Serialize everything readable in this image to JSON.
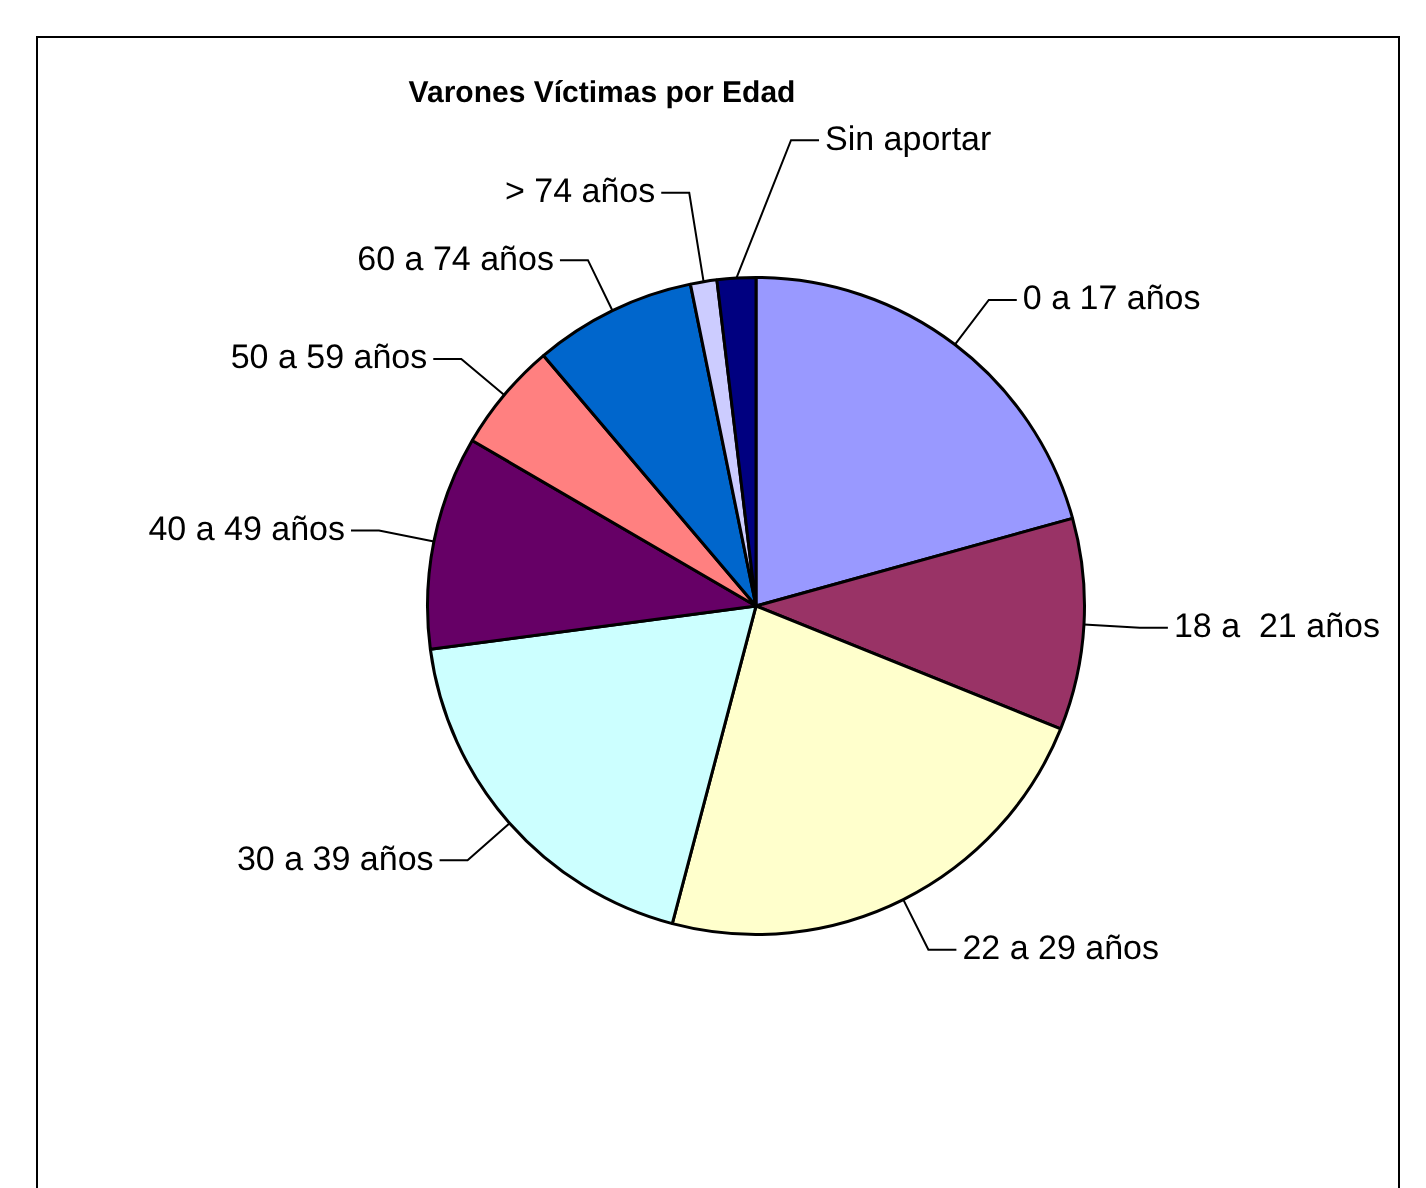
{
  "chart_data": {
    "type": "pie",
    "title": "Varones Víctimas por Edad",
    "categories": [
      "0 a 17 años",
      "18 a  21 años",
      "22 a 29 años",
      "30 a 39 años",
      "40 a 49 años",
      "50 a 59 años",
      "60 a 74 años",
      "> 74 años",
      "Sin aportar"
    ],
    "values": [
      20.7,
      10.4,
      23.0,
      18.8,
      10.5,
      5.4,
      8.0,
      1.3,
      1.9
    ],
    "colors": [
      "#9999ff",
      "#993366",
      "#ffffcc",
      "#ccffff",
      "#660066",
      "#ff8080",
      "#0066cc",
      "#ccccff",
      "#000080"
    ],
    "legend": false
  }
}
